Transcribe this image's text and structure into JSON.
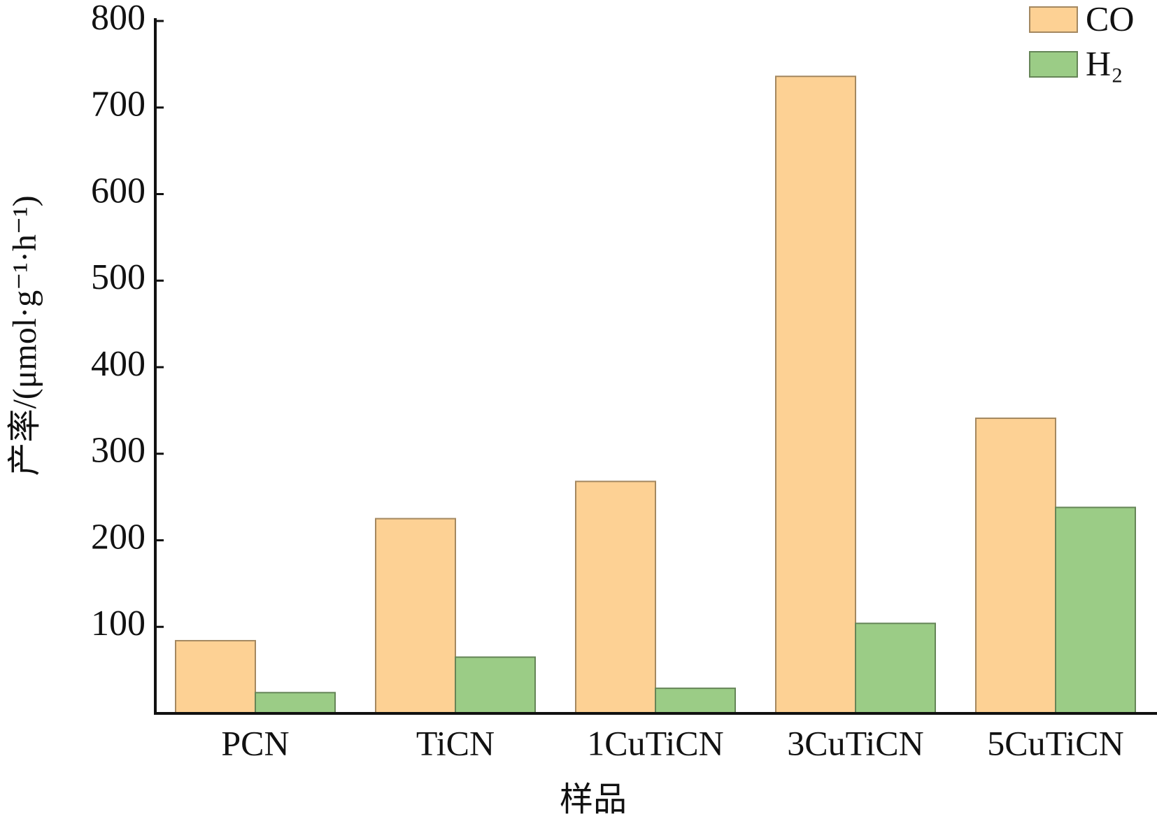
{
  "chart_data": {
    "type": "bar",
    "categories": [
      "PCN",
      "TiCN",
      "1CuTiCN",
      "3CuTiCN",
      "5CuTiCN"
    ],
    "series": [
      {
        "name": "CO",
        "color": "#fdd194",
        "values": [
          84,
          225,
          268,
          736,
          341
        ]
      },
      {
        "name": "H₂",
        "color": "#9bcc86",
        "values": [
          24,
          65,
          29,
          104,
          238
        ]
      }
    ],
    "x_label": "样品",
    "y_label": "产率/(μmol·g⁻¹·h⁻¹)",
    "ylim": [
      0,
      800
    ],
    "yticks": [
      100,
      200,
      300,
      400,
      500,
      600,
      700,
      800
    ],
    "legend": "upper right"
  }
}
